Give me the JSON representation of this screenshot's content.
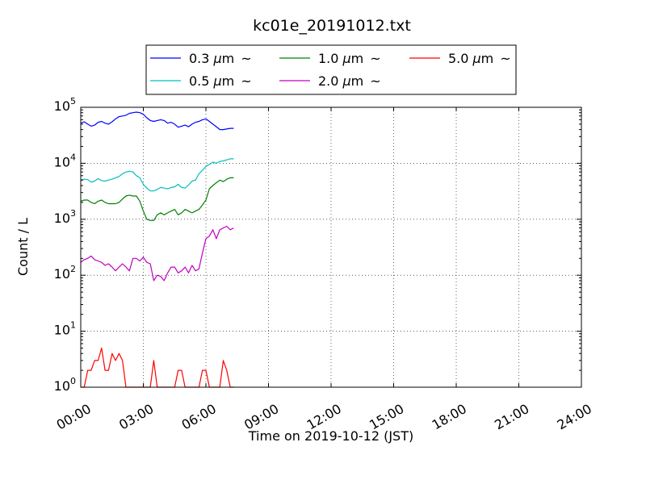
{
  "chart_data": {
    "type": "line",
    "title": "kc01e_20191012.txt",
    "xlabel": "Time on 2019-10-12 (JST)",
    "ylabel": "Count / L",
    "yscale": "log",
    "ylim": [
      1,
      100000
    ],
    "xlim": [
      "00:00",
      "24:00"
    ],
    "grid": true,
    "legend_position": "top",
    "x_ticks": [
      "00:00",
      "03:00",
      "06:00",
      "09:00",
      "12:00",
      "15:00",
      "18:00",
      "21:00",
      "24:00"
    ],
    "y_ticks": [
      {
        "value": 1,
        "base": "10",
        "exp": "0"
      },
      {
        "value": 10,
        "base": "10",
        "exp": "1"
      },
      {
        "value": 100,
        "base": "10",
        "exp": "2"
      },
      {
        "value": 1000,
        "base": "10",
        "exp": "3"
      },
      {
        "value": 10000,
        "base": "10",
        "exp": "4"
      },
      {
        "value": 100000,
        "base": "10",
        "exp": "5"
      }
    ],
    "x": [
      "00:00",
      "00:10",
      "00:20",
      "00:30",
      "00:40",
      "00:50",
      "01:00",
      "01:10",
      "01:20",
      "01:30",
      "01:40",
      "01:50",
      "02:00",
      "02:10",
      "02:20",
      "02:30",
      "02:40",
      "02:50",
      "03:00",
      "03:10",
      "03:20",
      "03:30",
      "03:40",
      "03:50",
      "04:00",
      "04:10",
      "04:20",
      "04:30",
      "04:40",
      "04:50",
      "05:00",
      "05:10",
      "05:20",
      "05:30",
      "05:40",
      "05:50",
      "06:00",
      "06:10",
      "06:20",
      "06:30",
      "06:40",
      "06:50",
      "07:00",
      "07:10",
      "07:20"
    ],
    "series": [
      {
        "name": "0.3 μm ~",
        "label_text": "0.3",
        "unit_symbol": "μ",
        "unit_letter": "m",
        "suffix": "~",
        "color": "#0000ff",
        "values": [
          52000,
          55000,
          50000,
          46000,
          48000,
          54000,
          56000,
          52000,
          50000,
          55000,
          62000,
          68000,
          70000,
          72000,
          78000,
          80000,
          82000,
          80000,
          75000,
          65000,
          58000,
          56000,
          58000,
          60000,
          58000,
          52000,
          54000,
          50000,
          44000,
          46000,
          48000,
          45000,
          50000,
          54000,
          56000,
          60000,
          62000,
          56000,
          50000,
          45000,
          40000,
          40000,
          41000,
          42000,
          42000
        ]
      },
      {
        "name": "0.5 μm ~",
        "label_text": "0.5",
        "unit_symbol": "μ",
        "unit_letter": "m",
        "suffix": "~",
        "color": "#00bfbf",
        "values": [
          5000,
          5200,
          5100,
          4600,
          4800,
          5300,
          4900,
          4800,
          5000,
          5200,
          5500,
          5800,
          6500,
          7000,
          7200,
          7000,
          6000,
          5500,
          4200,
          3600,
          3200,
          3200,
          3400,
          3700,
          3600,
          3500,
          3700,
          3800,
          4200,
          3700,
          3600,
          4100,
          4800,
          5000,
          6500,
          7500,
          8800,
          9500,
          10500,
          10000,
          10800,
          11000,
          11500,
          12000,
          12000
        ]
      },
      {
        "name": "1.0 μm ~",
        "label_text": "1.0",
        "unit_symbol": "μ",
        "unit_letter": "m",
        "suffix": "~",
        "color": "#008000",
        "values": [
          2100,
          2200,
          2200,
          2000,
          1900,
          2100,
          2200,
          2000,
          1900,
          1900,
          1900,
          2000,
          2300,
          2600,
          2700,
          2600,
          2600,
          2100,
          1400,
          1000,
          950,
          950,
          1200,
          1300,
          1200,
          1300,
          1400,
          1500,
          1200,
          1300,
          1500,
          1400,
          1300,
          1400,
          1500,
          1800,
          2200,
          3500,
          4000,
          4500,
          5000,
          4700,
          5200,
          5500,
          5500
        ]
      },
      {
        "name": "2.0 μm ~",
        "label_text": "2.0",
        "unit_symbol": "μ",
        "unit_letter": "m",
        "suffix": "~",
        "color": "#bf00bf",
        "values": [
          170,
          190,
          200,
          220,
          190,
          180,
          170,
          150,
          160,
          140,
          120,
          140,
          160,
          140,
          120,
          200,
          200,
          180,
          210,
          170,
          160,
          80,
          100,
          95,
          80,
          110,
          140,
          140,
          110,
          120,
          140,
          110,
          150,
          120,
          130,
          250,
          450,
          500,
          650,
          450,
          650,
          700,
          750,
          650,
          700
        ]
      },
      {
        "name": "5.0 μm ~",
        "label_text": "5.0",
        "unit_symbol": "μ",
        "unit_letter": "m",
        "suffix": "~",
        "color": "#ff0000",
        "values": [
          1,
          1,
          2,
          2,
          3,
          3,
          5,
          2,
          2,
          4,
          3,
          4,
          3,
          1,
          1,
          1,
          1,
          1,
          1,
          1,
          1,
          3,
          1,
          1,
          1,
          1,
          1,
          1,
          2,
          2,
          1,
          1,
          1,
          1,
          1,
          2,
          2,
          1,
          1,
          1,
          1,
          3,
          2,
          1,
          1
        ]
      }
    ]
  }
}
